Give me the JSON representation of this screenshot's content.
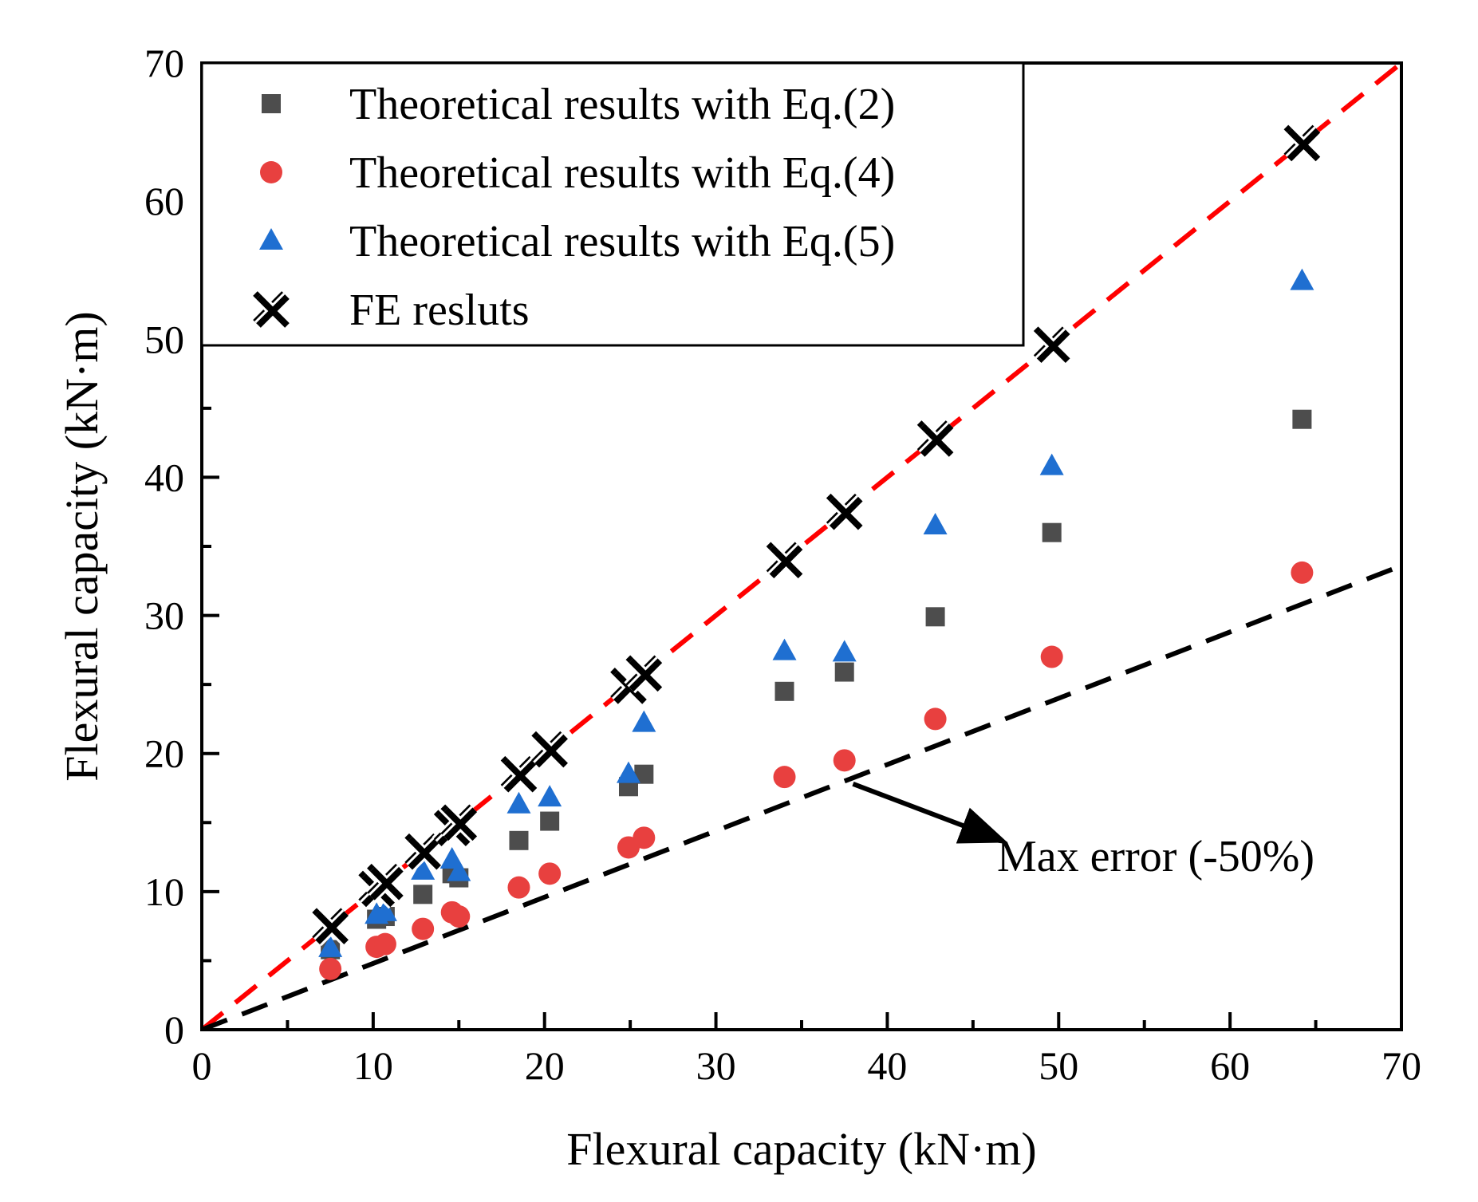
{
  "chart_data": {
    "type": "scatter",
    "title": "",
    "xlabel": "Flexural capacity (kN·m)",
    "ylabel": "Flexural capacity (kN·m)",
    "xlim": [
      0,
      70
    ],
    "ylim": [
      0,
      70
    ],
    "xticks": [
      "0",
      "10",
      "20",
      "30",
      "40",
      "50",
      "60",
      "70"
    ],
    "yticks": [
      "0",
      "10",
      "20",
      "30",
      "40",
      "50",
      "60",
      "70"
    ],
    "grid": false,
    "legend_position": "top-left",
    "colors": {
      "eq2": "#4d4d4d",
      "eq4": "#e8403f",
      "eq5": "#1f6fd1",
      "fe": "#000000",
      "ref_line": "#ff0000",
      "error_line": "#000000"
    },
    "series": [
      {
        "name": "Theoretical results with Eq.(2)",
        "marker": "square",
        "points": [
          [
            7.5,
            5.8
          ],
          [
            10.2,
            8.0
          ],
          [
            10.7,
            8.2
          ],
          [
            12.9,
            9.8
          ],
          [
            14.6,
            11.3
          ],
          [
            15.0,
            11.0
          ],
          [
            18.5,
            13.7
          ],
          [
            20.3,
            15.1
          ],
          [
            24.9,
            17.6
          ],
          [
            25.8,
            18.5
          ],
          [
            34.0,
            24.5
          ],
          [
            37.5,
            25.9
          ],
          [
            42.8,
            29.9
          ],
          [
            49.6,
            36.0
          ],
          [
            64.2,
            44.2
          ]
        ]
      },
      {
        "name": "Theoretical results with Eq.(4)",
        "marker": "circle",
        "points": [
          [
            7.5,
            4.4
          ],
          [
            10.2,
            6.0
          ],
          [
            10.7,
            6.2
          ],
          [
            12.9,
            7.3
          ],
          [
            14.6,
            8.5
          ],
          [
            15.0,
            8.2
          ],
          [
            18.5,
            10.3
          ],
          [
            20.3,
            11.3
          ],
          [
            24.9,
            13.2
          ],
          [
            25.8,
            13.9
          ],
          [
            34.0,
            18.3
          ],
          [
            37.5,
            19.5
          ],
          [
            42.8,
            22.5
          ],
          [
            49.6,
            27.0
          ],
          [
            64.2,
            33.1
          ]
        ]
      },
      {
        "name": "Theoretical results with Eq.(5)",
        "marker": "triangle",
        "points": [
          [
            7.5,
            5.9
          ],
          [
            10.2,
            8.3
          ],
          [
            10.7,
            8.5
          ],
          [
            12.9,
            11.5
          ],
          [
            14.6,
            12.3
          ],
          [
            15.0,
            11.4
          ],
          [
            18.5,
            16.3
          ],
          [
            20.3,
            16.8
          ],
          [
            24.9,
            18.5
          ],
          [
            25.8,
            22.2
          ],
          [
            34.0,
            27.4
          ],
          [
            37.5,
            27.3
          ],
          [
            42.8,
            36.5
          ],
          [
            49.6,
            40.8
          ],
          [
            64.2,
            54.2
          ]
        ]
      },
      {
        "name": "FE resluts",
        "marker": "x-cross",
        "points": [
          [
            7.5,
            7.5
          ],
          [
            10.2,
            10.2
          ],
          [
            10.7,
            10.7
          ],
          [
            12.9,
            12.9
          ],
          [
            14.6,
            14.6
          ],
          [
            15.0,
            15.0
          ],
          [
            18.5,
            18.5
          ],
          [
            20.3,
            20.3
          ],
          [
            24.9,
            24.9
          ],
          [
            25.8,
            25.8
          ],
          [
            34.0,
            34.0
          ],
          [
            37.5,
            37.5
          ],
          [
            42.8,
            42.8
          ],
          [
            49.6,
            49.6
          ],
          [
            64.2,
            64.2
          ]
        ]
      }
    ],
    "reference_lines": [
      {
        "name": "y = x",
        "slope": 1.0,
        "style": "dashed"
      },
      {
        "name": "-50% error",
        "slope": 0.48,
        "style": "dashed"
      }
    ],
    "annotation": {
      "text": "Max error (-50%)",
      "arrow_from": [
        38,
        17.8
      ],
      "arrow_to": [
        46.5,
        13.8
      ]
    }
  }
}
